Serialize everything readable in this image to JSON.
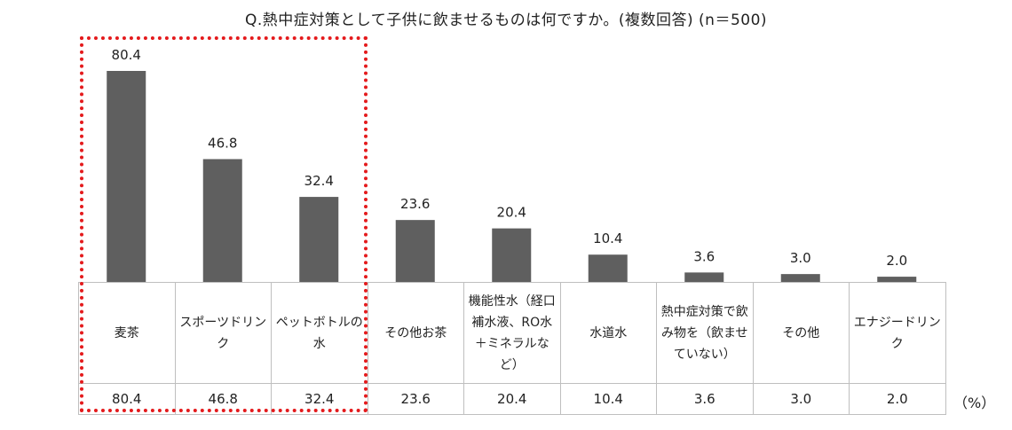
{
  "title": "Q.熱中症対策として子供に飲ませるものは何ですか。(複数回答) (n＝500)",
  "unit": "（%）",
  "colors": {
    "bar": "#5f5f5f",
    "highlight": "#e41a1c",
    "grid": "#bfbfbf"
  },
  "chart_data": {
    "type": "bar",
    "title": "Q.熱中症対策として子供に飲ませるものは何ですか。(複数回答) (n＝500)",
    "categories": [
      "麦茶",
      "スポーツドリンク",
      "ペットボトルの水",
      "その他お茶",
      "機能性水（経口補水液、RO水＋ミネラルなど）",
      "水道水",
      "熱中症対策で飲み物を（飲ませていない）",
      "その他",
      "エナジードリンク"
    ],
    "values": [
      80.4,
      46.8,
      32.4,
      23.6,
      20.4,
      10.4,
      3.6,
      3.0,
      2.0
    ],
    "value_labels": [
      "80.4",
      "46.8",
      "32.4",
      "23.6",
      "20.4",
      "10.4",
      "3.6",
      "3.0",
      "2.0"
    ],
    "ylim": [
      0,
      80.4
    ],
    "grid": false,
    "legend": "none",
    "highlighted_categories": [
      "麦茶",
      "スポーツドリンク",
      "ペットボトルの水"
    ]
  }
}
